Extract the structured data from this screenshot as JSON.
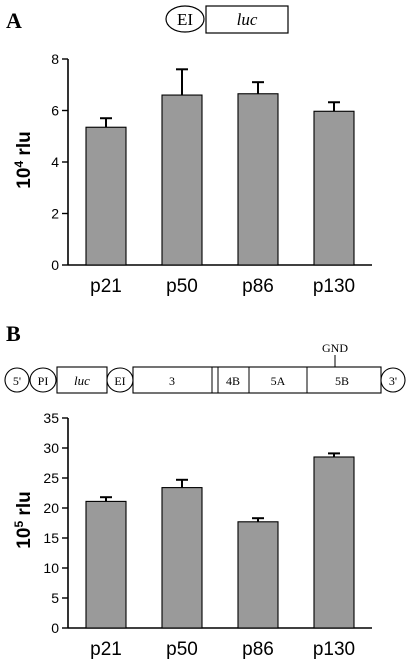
{
  "panels": {
    "a": {
      "letter": "A",
      "construct": {
        "ei": "EI",
        "luc": "luc"
      }
    },
    "b": {
      "letter": "B",
      "construct": {
        "five_utr": "5'",
        "pi": "PI",
        "luc": "luc",
        "ei": "EI",
        "seg_3": "3",
        "seg_4b": "4B",
        "seg_5a": "5A",
        "seg_5b": "5B",
        "three_utr": "3'",
        "gnd": "GND"
      }
    }
  },
  "chart_data": [
    {
      "type": "bar",
      "panel": "A",
      "categories": [
        "p21",
        "p50",
        "p86",
        "p130"
      ],
      "values": [
        5.35,
        6.6,
        6.65,
        5.97
      ],
      "errors": [
        0.35,
        1.0,
        0.45,
        0.35
      ],
      "ylabel": "10",
      "ylabel_sup": "4",
      "ylabel_unit": "rlu",
      "ylim": [
        0,
        8
      ],
      "yticks": [
        0,
        2,
        4,
        6,
        8
      ],
      "grid": false,
      "bar_color": "#9a9a9a"
    },
    {
      "type": "bar",
      "panel": "B",
      "categories": [
        "p21",
        "p50",
        "p86",
        "p130"
      ],
      "values": [
        21.1,
        23.4,
        17.7,
        28.5
      ],
      "errors": [
        0.7,
        1.3,
        0.6,
        0.6
      ],
      "ylabel": "10",
      "ylabel_sup": "5",
      "ylabel_unit": "rlu",
      "ylim": [
        0,
        35
      ],
      "yticks": [
        0,
        5,
        10,
        15,
        20,
        25,
        30,
        35
      ],
      "grid": false,
      "bar_color": "#9a9a9a"
    }
  ]
}
